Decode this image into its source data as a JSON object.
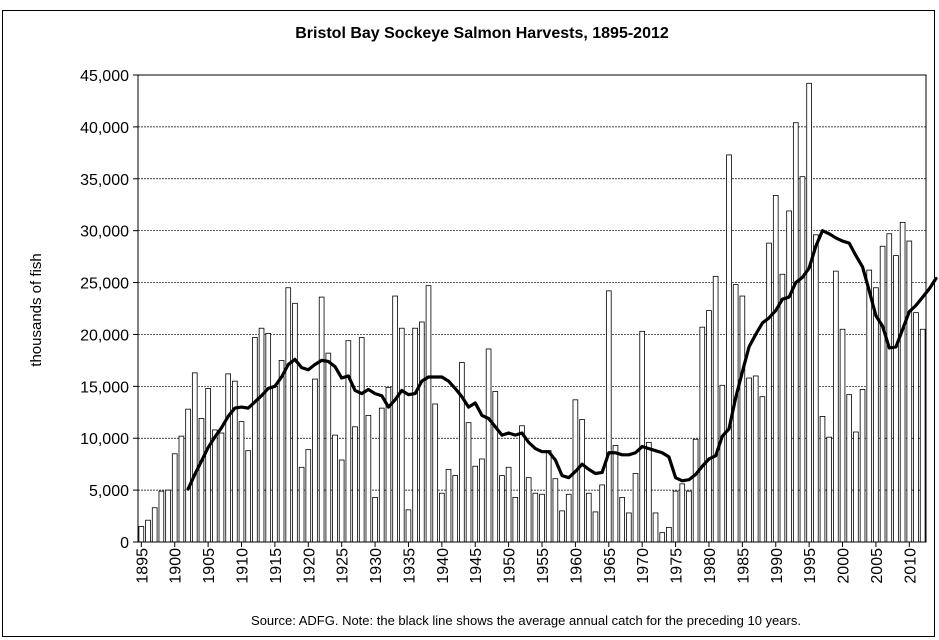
{
  "chart_data": {
    "type": "bar",
    "title": "Bristol Bay Sockeye Salmon Harvests, 1895-2012",
    "ylabel": "thousands of fish",
    "xlabel": "",
    "source_note": "Source:  ADFG.  Note:  the black line shows the average annual catch for the preceding 10 years.",
    "ylim": [
      0,
      45000
    ],
    "y_ticks": [
      "0",
      "5,000",
      "10,000",
      "15,000",
      "20,000",
      "25,000",
      "30,000",
      "35,000",
      "40,000",
      "45,000"
    ],
    "y_tick_values": [
      0,
      5000,
      10000,
      15000,
      20000,
      25000,
      30000,
      35000,
      40000,
      45000
    ],
    "x_ticks": [
      "1895",
      "1900",
      "1905",
      "1910",
      "1915",
      "1920",
      "1925",
      "1930",
      "1935",
      "1940",
      "1945",
      "1950",
      "1955",
      "1960",
      "1965",
      "1970",
      "1975",
      "1980",
      "1985",
      "1990",
      "1995",
      "2000",
      "2005",
      "2010"
    ],
    "grid": true,
    "bar_color": "#ffffff",
    "bar_edge_color": "#000000",
    "line_color": "#000000",
    "x_start": 1895,
    "x_end": 2012,
    "series": [
      {
        "kind": "bar",
        "values": [
          1500,
          2100,
          3300,
          4900,
          5000,
          8500,
          10200,
          12800,
          16300,
          11900,
          14800,
          10800,
          10500,
          16200,
          15500,
          11600,
          8800,
          19700,
          20600,
          20100,
          15000,
          17500,
          24500,
          23000,
          7200,
          8900,
          15700,
          23600,
          18200,
          10300,
          7900,
          19400,
          11100,
          19700,
          12200,
          4300,
          12900,
          14900,
          23700,
          20600,
          3100,
          20600,
          21200,
          24700,
          13300,
          4700,
          7000,
          6400,
          17300,
          11500,
          7300,
          8000,
          18600,
          14500,
          6400,
          7200,
          4300,
          11200,
          6200,
          4700,
          4600,
          8800,
          6100,
          3000,
          4600,
          13700,
          11800,
          4700,
          2900,
          5500,
          24200,
          9300,
          4300,
          2800,
          6600,
          20300,
          9600,
          2800,
          900,
          1400,
          4900,
          5600,
          4900,
          9900,
          20700,
          22300,
          25600,
          15100,
          37300,
          24800,
          23700,
          15800,
          16000,
          14000,
          28800,
          33400,
          25800,
          31900,
          40400,
          35200,
          44200,
          29600,
          12100,
          10100,
          26100,
          20500,
          14200,
          10600,
          14700,
          26200,
          24500,
          28500,
          29700,
          27600,
          30800,
          29000,
          22100,
          20500
        ]
      },
      {
        "kind": "line",
        "start_year": 1902,
        "values": [
          5100,
          6500,
          7800,
          9100,
          10100,
          11000,
          12100,
          12900,
          13000,
          12900,
          13500,
          14100,
          14800,
          15000,
          15900,
          17100,
          17600,
          16800,
          16600,
          17100,
          17500,
          17400,
          16900,
          15800,
          16000,
          14600,
          14300,
          14700,
          14300,
          14100,
          13000,
          13700,
          14600,
          14200,
          14300,
          15500,
          15900,
          15900,
          15900,
          15500,
          14800,
          14000,
          13000,
          13400,
          12200,
          11900,
          11100,
          10300,
          10500,
          10300,
          10500,
          9600,
          9000,
          8700,
          8700,
          7900,
          6400,
          6200,
          6800,
          7500,
          7000,
          6600,
          6700,
          8600,
          8600,
          8400,
          8400,
          8600,
          9200,
          9000,
          8800,
          8600,
          8200,
          6200,
          5900,
          6000,
          6500,
          7300,
          8000,
          8300,
          10200,
          10900,
          13900,
          16400,
          18800,
          20000,
          21100,
          21600,
          22300,
          23400,
          23600,
          25000,
          25500,
          26400,
          28500,
          30000,
          29700,
          29300,
          29000,
          28800,
          27600,
          26500,
          24200,
          21800,
          20800,
          18700,
          18800,
          20500,
          22200,
          22800,
          23600,
          24400,
          25400
        ]
      }
    ]
  }
}
